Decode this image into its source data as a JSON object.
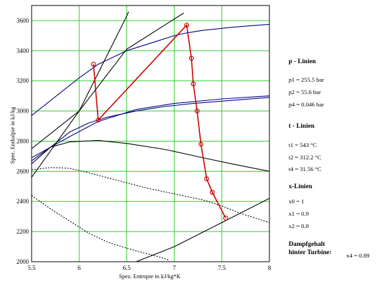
{
  "chart_data": {
    "type": "line",
    "xlabel": "Spez. Entropie in kJ/kg*K",
    "ylabel": "Spez. Enthalpie in kJ/kg",
    "xlim": [
      5.5,
      8
    ],
    "ylim": [
      2000,
      3700
    ],
    "xticks": [
      5.5,
      6,
      6.5,
      7,
      7.5,
      8
    ],
    "xtick_labels": [
      "5.5",
      "6",
      "6.5",
      "7",
      "7.5",
      "8"
    ],
    "yticks": [
      2000,
      2200,
      2400,
      2600,
      2800,
      3000,
      3200,
      3400,
      3600
    ],
    "ytick_labels": [
      "2000",
      "2200",
      "2400",
      "2600",
      "2800",
      "3000",
      "3200",
      "3400",
      "3600"
    ],
    "grid": true,
    "series": [
      {
        "style": "solid",
        "color": "#000080",
        "points": [
          [
            5.5,
            2970
          ],
          [
            5.8,
            3120
          ],
          [
            6.0,
            3220
          ],
          [
            6.2,
            3310
          ],
          [
            6.5,
            3400
          ],
          [
            6.8,
            3460
          ],
          [
            7.0,
            3500
          ],
          [
            7.13,
            3518
          ],
          [
            7.3,
            3535
          ],
          [
            7.6,
            3555
          ],
          [
            7.8,
            3565
          ],
          [
            8.0,
            3575
          ]
        ]
      },
      {
        "style": "solid",
        "color": "#000080",
        "points": [
          [
            5.5,
            2650
          ],
          [
            5.7,
            2760
          ],
          [
            5.9,
            2860
          ],
          [
            6.1,
            2920
          ],
          [
            6.3,
            2960
          ],
          [
            6.6,
            3000
          ],
          [
            6.9,
            3030
          ],
          [
            7.2,
            3050
          ],
          [
            7.6,
            3070
          ],
          [
            8.0,
            3090
          ]
        ]
      },
      {
        "style": "solid",
        "color": "#000080",
        "points": [
          [
            5.5,
            2690
          ],
          [
            5.7,
            2760
          ],
          [
            5.9,
            2830
          ],
          [
            6.2,
            2930
          ],
          [
            6.6,
            3010
          ],
          [
            7.0,
            3050
          ],
          [
            7.5,
            3080
          ],
          [
            8.0,
            3100
          ]
        ]
      },
      {
        "style": "solid",
        "color": "#000000",
        "points": [
          [
            5.5,
            2670
          ],
          [
            5.7,
            2760
          ],
          [
            5.9,
            2795
          ],
          [
            6.2,
            2805
          ],
          [
            6.5,
            2785
          ],
          [
            6.9,
            2745
          ],
          [
            7.3,
            2690
          ],
          [
            7.6,
            2650
          ],
          [
            8.0,
            2600
          ]
        ]
      },
      {
        "style": "dotted",
        "color": "#000000",
        "points": [
          [
            5.5,
            2610
          ],
          [
            5.7,
            2625
          ],
          [
            5.9,
            2620
          ],
          [
            6.1,
            2590
          ],
          [
            6.4,
            2540
          ],
          [
            6.7,
            2490
          ],
          [
            7.0,
            2450
          ],
          [
            7.3,
            2410
          ],
          [
            7.5,
            2370
          ],
          [
            7.7,
            2320
          ],
          [
            7.85,
            2290
          ],
          [
            8.0,
            2260
          ]
        ]
      },
      {
        "style": "dotted",
        "color": "#000000",
        "points": [
          [
            5.5,
            2440
          ],
          [
            5.7,
            2350
          ],
          [
            5.9,
            2270
          ],
          [
            6.1,
            2190
          ],
          [
            6.3,
            2130
          ],
          [
            6.5,
            2090
          ],
          [
            6.7,
            2055
          ],
          [
            6.85,
            2030
          ],
          [
            6.95,
            2010
          ]
        ]
      },
      {
        "style": "solid",
        "color": "#000000",
        "points": [
          [
            5.5,
            2560
          ],
          [
            6.0,
            3000
          ],
          [
            6.5,
            3630
          ],
          [
            6.52,
            3660
          ]
        ]
      },
      {
        "style": "solid",
        "color": "#000000",
        "points": [
          [
            5.5,
            2750
          ],
          [
            6.0,
            3000
          ],
          [
            6.5,
            3410
          ],
          [
            7.0,
            3610
          ],
          [
            7.1,
            3650
          ]
        ]
      },
      {
        "style": "solid",
        "color": "#000000",
        "points": [
          [
            6.6,
            2000
          ],
          [
            7.0,
            2100
          ],
          [
            7.5,
            2260
          ],
          [
            8.0,
            2420
          ]
        ]
      }
    ],
    "process_line": {
      "color": "#cc0000",
      "points": [
        [
          6.15,
          3310
        ],
        [
          6.2,
          2940
        ],
        [
          7.13,
          3570
        ],
        [
          7.18,
          3350
        ],
        [
          7.2,
          3180
        ],
        [
          7.24,
          3000
        ],
        [
          7.28,
          2780
        ],
        [
          7.34,
          2550
        ],
        [
          7.4,
          2460
        ],
        [
          7.54,
          2290
        ]
      ]
    },
    "legend_panel": {
      "p_heading": "p - Linien",
      "p1": "p1 = 255.5 bar",
      "p2": "p2 = 55.6 bar",
      "p4": "p4 = 0.046 bar",
      "t_heading": "t - Linien",
      "t1": "t1 = 543 °C",
      "t2": "t2 = 312.2 °C",
      "t4": "t4 = 31.56 °C",
      "x_heading": "x-Linien",
      "x0": "x0 = 1",
      "x1": "x1 = 0.9",
      "x2": "x2 = 0.8",
      "steam_heading_line1": "Dampfgehalt",
      "steam_heading_line2": "hinter Turbine:",
      "x4": "x4 = 0.89"
    }
  }
}
